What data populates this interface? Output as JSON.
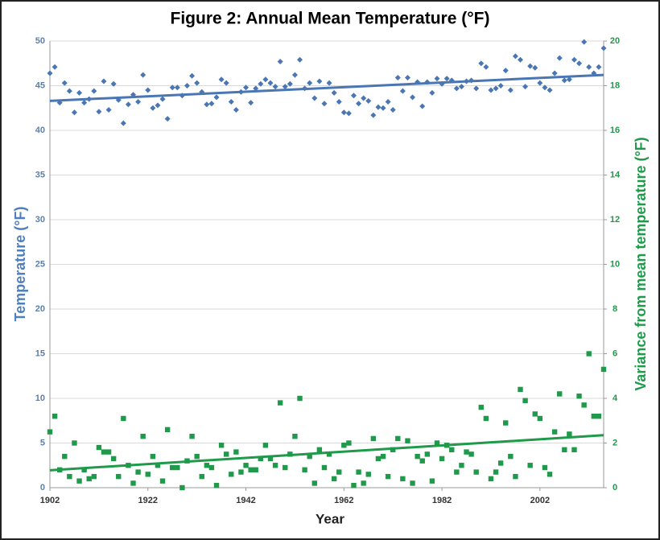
{
  "chart_data": {
    "type": "scatter",
    "title": "Figure 2: Annual Mean Temperature (°F)",
    "xlabel": "Year",
    "ylabel": "Temperature (°F)",
    "y2label": "Variance from mean temperature (°F)",
    "x": [
      1902,
      1903,
      1904,
      1905,
      1906,
      1907,
      1908,
      1909,
      1910,
      1911,
      1912,
      1913,
      1914,
      1915,
      1916,
      1917,
      1918,
      1919,
      1920,
      1921,
      1922,
      1923,
      1924,
      1925,
      1926,
      1927,
      1928,
      1929,
      1930,
      1931,
      1932,
      1933,
      1934,
      1935,
      1936,
      1937,
      1938,
      1939,
      1940,
      1941,
      1942,
      1943,
      1944,
      1945,
      1946,
      1947,
      1948,
      1949,
      1950,
      1951,
      1952,
      1953,
      1954,
      1955,
      1956,
      1957,
      1958,
      1959,
      1960,
      1961,
      1962,
      1963,
      1964,
      1965,
      1966,
      1967,
      1968,
      1969,
      1970,
      1971,
      1972,
      1973,
      1974,
      1975,
      1976,
      1977,
      1978,
      1979,
      1980,
      1981,
      1982,
      1983,
      1984,
      1985,
      1986,
      1987,
      1988,
      1989,
      1990,
      1991,
      1992,
      1993,
      1994,
      1995,
      1996,
      1997,
      1998,
      1999,
      2000,
      2001,
      2002,
      2003,
      2004,
      2005,
      2006,
      2007,
      2008,
      2009,
      2010,
      2011,
      2012,
      2013,
      2014,
      2015
    ],
    "xlim": [
      1902,
      2015
    ],
    "xticks": [
      1902,
      1922,
      1942,
      1962,
      1982,
      2002
    ],
    "ylim": [
      0,
      50
    ],
    "yticks": [
      0,
      5,
      10,
      15,
      20,
      25,
      30,
      35,
      40,
      45,
      50
    ],
    "y2lim": [
      0,
      20
    ],
    "y2ticks": [
      0,
      2,
      4,
      6,
      8,
      10,
      12,
      14,
      16,
      18,
      20
    ],
    "series": [
      {
        "color": "#4a76b3",
        "marker": "diamond",
        "axis": "y",
        "values": [
          46.4,
          47.1,
          43.1,
          45.3,
          44.4,
          42.0,
          44.2,
          43.1,
          43.5,
          44.4,
          42.1,
          45.5,
          42.3,
          45.2,
          43.4,
          40.8,
          42.9,
          44.0,
          43.2,
          46.2,
          44.5,
          42.5,
          42.8,
          43.5,
          41.3,
          44.8,
          44.8,
          43.9,
          45.0,
          46.1,
          45.3,
          44.3,
          42.9,
          43.0,
          43.7,
          45.7,
          45.3,
          43.2,
          42.3,
          44.3,
          44.8,
          43.1,
          44.7,
          45.2,
          45.7,
          45.3,
          44.9,
          47.7,
          44.9,
          45.2,
          46.2,
          47.9,
          44.7,
          45.3,
          43.6,
          45.5,
          43.0,
          45.3,
          44.2,
          43.2,
          42.0,
          41.9,
          43.9,
          43.0,
          43.6,
          43.3,
          41.7,
          42.6,
          42.5,
          43.2,
          42.3,
          45.9,
          44.4,
          45.9,
          43.7,
          45.4,
          42.7,
          45.4,
          44.2,
          45.8,
          45.2,
          45.8,
          45.6,
          44.7,
          44.9,
          45.5,
          45.6,
          44.7,
          47.5,
          47.1,
          44.5,
          44.7,
          45.0,
          46.7,
          44.5,
          48.3,
          47.9,
          44.9,
          47.2,
          47.0,
          45.3,
          44.8,
          44.5,
          46.4,
          48.1,
          45.6,
          45.7,
          47.9,
          47.5,
          49.9,
          47.1,
          46.4,
          47.1,
          49.2
        ],
        "trendline": {
          "x": [
            1902,
            2015
          ],
          "values": [
            43.3,
            46.2
          ]
        }
      },
      {
        "color": "#1f9a4a",
        "marker": "square",
        "axis": "y2",
        "values": [
          2.5,
          3.2,
          0.8,
          1.4,
          0.5,
          2.0,
          0.3,
          0.8,
          0.4,
          0.5,
          1.8,
          1.6,
          1.6,
          1.3,
          0.5,
          3.1,
          1.0,
          0.2,
          0.7,
          2.3,
          0.6,
          1.4,
          1.0,
          0.3,
          2.6,
          0.9,
          0.9,
          0.0,
          1.2,
          2.3,
          1.4,
          0.5,
          1.0,
          0.9,
          0.1,
          1.9,
          1.5,
          0.6,
          1.6,
          0.7,
          1.0,
          0.8,
          0.8,
          1.3,
          1.9,
          1.3,
          1.0,
          3.8,
          0.9,
          1.5,
          2.3,
          4.0,
          0.8,
          1.4,
          0.2,
          1.7,
          0.9,
          1.5,
          0.4,
          0.7,
          1.9,
          2.0,
          0.1,
          0.7,
          0.2,
          0.6,
          2.2,
          1.3,
          1.4,
          0.5,
          1.7,
          2.2,
          0.4,
          2.1,
          0.2,
          1.4,
          1.2,
          1.5,
          0.3,
          2.0,
          1.3,
          1.9,
          1.7,
          0.7,
          1.0,
          1.6,
          1.5,
          0.7,
          3.6,
          3.1,
          0.4,
          0.7,
          1.1,
          2.9,
          1.4,
          0.5,
          4.4,
          3.9,
          1.0,
          3.3,
          3.1,
          0.9,
          0.6,
          2.5,
          4.2,
          1.7,
          2.4,
          1.7,
          4.1,
          3.7,
          6.0,
          3.2,
          3.2,
          5.3
        ],
        "trendline": {
          "x": [
            1902,
            2015
          ],
          "values": [
            0.78,
            2.35
          ]
        }
      }
    ]
  }
}
